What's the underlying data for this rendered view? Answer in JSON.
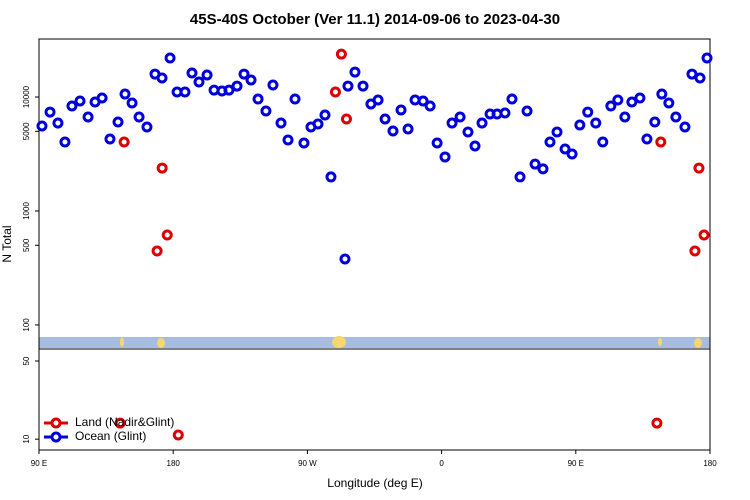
{
  "chart_data": [
    {
      "type": "scatter",
      "title": "45S-40S October (Ver 11.1)   2014-09-06 to 2023-04-30",
      "ylabel": "N Total",
      "log_y": true,
      "xlim": [
        90,
        540
      ],
      "ylim": [
        61.5,
        32300
      ],
      "yticks": [
        100,
        500,
        1000,
        5000,
        10000
      ],
      "series": [
        {
          "name": "Ocean (Glint)",
          "color": "#0000dd",
          "x": [
            92.0,
            97.4,
            102.7,
            107.4,
            112.1,
            117.5,
            122.9,
            127.6,
            132.3,
            137.6,
            143.0,
            147.7,
            152.4,
            157.1,
            162.4,
            167.8,
            172.5,
            177.9,
            182.6,
            187.9,
            192.6,
            197.3,
            202.7,
            207.4,
            212.7,
            217.4,
            222.8,
            227.5,
            232.2,
            236.9,
            242.2,
            246.9,
            252.3,
            257.0,
            261.7,
            267.7,
            272.4,
            277.1,
            281.8,
            285.8,
            295.2,
            297.2,
            301.9,
            307.3,
            312.6,
            317.4,
            322.1,
            327.4,
            332.8,
            337.5,
            342.2,
            347.6,
            352.3,
            357.0,
            362.3,
            367.0,
            372.4,
            377.7,
            382.4,
            387.1,
            392.5,
            397.2,
            402.5,
            407.2,
            412.6,
            417.3,
            422.7,
            428.0,
            432.7,
            437.4,
            442.8,
            447.5,
            452.7,
            458.0,
            463.4,
            468.1,
            473.5,
            478.2,
            482.9,
            487.6,
            493.0,
            497.7,
            503.0,
            507.7,
            512.4,
            517.1,
            523.2,
            527.9,
            533.3,
            538.0
          ],
          "values": [
            5570,
            7380,
            5910,
            4030,
            8340,
            9230,
            6680,
            9040,
            9800,
            4280,
            6040,
            10620,
            8860,
            6680,
            5460,
            15900,
            14700,
            22000,
            11070,
            11070,
            16250,
            13550,
            15600,
            11500,
            11300,
            11500,
            12480,
            15900,
            14100,
            9600,
            7540,
            12740,
            5910,
            4200,
            9600,
            3950,
            5460,
            5800,
            6950,
            1990,
            379,
            12480,
            16560,
            12480,
            8690,
            9420,
            6410,
            5030,
            7690,
            5240,
            9420,
            9230,
            8340,
            3950,
            2980,
            5910,
            6680,
            4930,
            3720,
            5910,
            7100,
            7100,
            7240,
            9600,
            1990,
            7540,
            2580,
            2340,
            4030,
            4930,
            3500,
            3160,
            5680,
            7380,
            5910,
            4030,
            8340,
            9420,
            6680,
            9040,
            9800,
            4280,
            6040,
            10620,
            8860,
            6680,
            5460,
            15900,
            14700,
            22000
          ]
        },
        {
          "name": "Land (Nadir&Glint)",
          "color": "#dd0000",
          "x": [
            147.1,
            169.2,
            172.6,
            176.0,
            288.8,
            292.8,
            296.2,
            507.0,
            529.9,
            532.6,
            536.0
          ],
          "values": [
            4030,
            446,
            2380,
            615,
            11070,
            23800,
            6410,
            4030,
            446,
            2380,
            615
          ]
        }
      ]
    },
    {
      "type": "scatter",
      "xlabel": "Longitude (deg E)",
      "log_y": true,
      "legend": "lower left",
      "xlim": [
        90,
        540
      ],
      "xticks": [
        {
          "value": 90,
          "label": "90 E"
        },
        {
          "value": 180,
          "label": "180"
        },
        {
          "value": 270,
          "label": "90 W"
        },
        {
          "value": 360,
          "label": "0"
        },
        {
          "value": 450,
          "label": "90 E"
        },
        {
          "value": 540,
          "label": "180"
        }
      ],
      "ylim": [
        8,
        64
      ],
      "yticks": [
        10,
        50
      ],
      "series": [
        {
          "color": "#dd0000",
          "x": [
            144.4,
            183.4,
            504.4
          ],
          "values": [
            13.9,
            10.9,
            13.9
          ]
        }
      ]
    }
  ]
}
